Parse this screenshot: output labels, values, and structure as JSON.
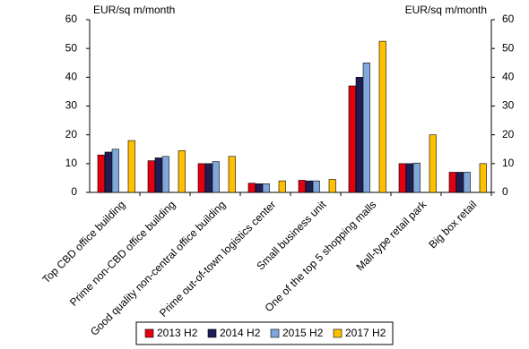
{
  "chart_data": {
    "type": "bar",
    "ylabel": "EUR/sq m/month",
    "y2label": "EUR/sq m/month",
    "categories": [
      "Top CBD office building",
      "Prime non-CBD office building",
      "Good quality non-central office building",
      "Prime out-of-town logistics center",
      "Small business unit",
      "One of the top 5 shopping malls",
      "Mall-type retail park",
      "Big box retail"
    ],
    "series": [
      {
        "name": "2013 H2",
        "color": "#e3000f",
        "values": [
          13,
          11,
          10,
          3.2,
          4.2,
          37,
          10,
          7
        ]
      },
      {
        "name": "2014 H2",
        "color": "#1f1d55",
        "values": [
          14,
          12,
          10,
          3,
          4,
          40,
          10,
          7
        ]
      },
      {
        "name": "2015 H2",
        "color": "#7fa7da",
        "values": [
          15,
          12.5,
          10.7,
          3,
          4,
          45,
          10.2,
          7
        ]
      },
      {
        "name": "2017 H2",
        "color": "#ffc000",
        "values": [
          18,
          14.5,
          12.5,
          4,
          4.5,
          52.5,
          20,
          10
        ]
      }
    ],
    "ylim": [
      0,
      60
    ],
    "yticks": [
      0,
      10,
      20,
      30,
      40,
      50,
      60
    ],
    "y2lim": [
      0,
      60
    ],
    "y2ticks": [
      0,
      10,
      20,
      30,
      40,
      50,
      60
    ],
    "legend": "bottom"
  }
}
